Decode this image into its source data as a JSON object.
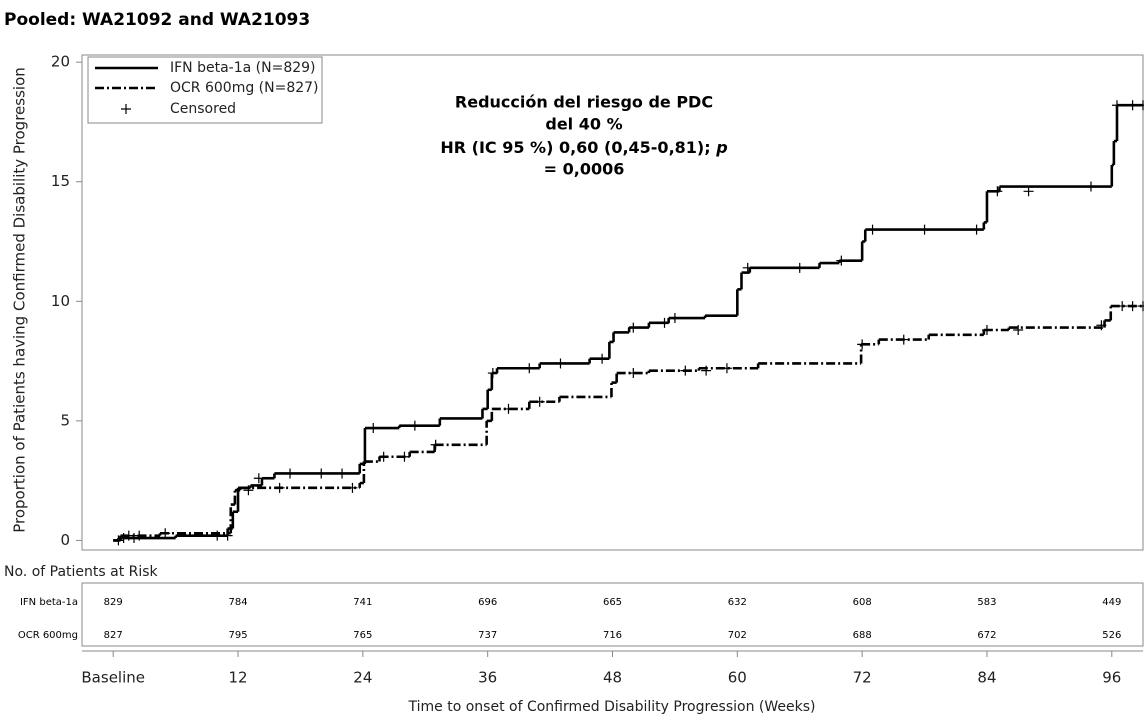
{
  "chart_data": {
    "type": "step",
    "title": "Pooled: WA21092 and WA21093",
    "xlabel": "Time to onset of Confirmed Disability Progression (Weeks)",
    "ylabel": "Proportion of Patients having Confirmed Disability Progression",
    "annotation": [
      "Reducción del riesgo de PDC",
      "del 40 %",
      [
        "HR (IC 95 %) 0,60 (0,45-0,81); ",
        "p"
      ],
      "= 0,0006"
    ],
    "legend_position": "upper left",
    "censored_label": "Censored",
    "xlim": [
      -3,
      99
    ],
    "ylim": [
      -0.4,
      20.3
    ],
    "xticks": [
      {
        "value": 0,
        "label": "Baseline"
      },
      12,
      24,
      36,
      48,
      60,
      72,
      84,
      96
    ],
    "yticks": [
      0,
      5,
      10,
      15,
      20
    ],
    "grid": false,
    "series": [
      {
        "name": "IFN beta-1a (N=829)",
        "color": "#000000",
        "dash": "solid",
        "x": [
          0,
          0.5,
          6,
          11,
          11.5,
          12,
          13.2,
          14.3,
          15.5,
          23.7,
          24.2,
          27.5,
          31.4,
          35.5,
          36,
          36.4,
          36.9,
          41,
          45.8,
          47.7,
          48.1,
          49.6,
          51.5,
          53.4,
          56.9,
          60,
          60.4,
          61.2,
          67.9,
          69.8,
          72,
          72.3,
          83.7,
          84,
          85.2,
          96,
          96.2,
          96.5
        ],
        "values": [
          0,
          0.1,
          0.2,
          0.5,
          1.2,
          2.2,
          2.3,
          2.6,
          2.8,
          3.2,
          4.7,
          4.8,
          5.1,
          5.5,
          6.3,
          7.0,
          7.2,
          7.4,
          7.6,
          8.3,
          8.7,
          8.9,
          9.1,
          9.3,
          9.4,
          10.5,
          11.2,
          11.4,
          11.6,
          11.7,
          12.5,
          13.0,
          13.3,
          14.6,
          14.8,
          15.7,
          16.7,
          18.2
        ],
        "censored_x": [
          1,
          2,
          10,
          11,
          14,
          17,
          20,
          22,
          25,
          29,
          36.5,
          40,
          43,
          47,
          50,
          53,
          54,
          61,
          66,
          70,
          73,
          78,
          83,
          85,
          88,
          94,
          96.5,
          98,
          99
        ],
        "censored_values": [
          0.1,
          0.1,
          0.2,
          0.2,
          2.6,
          2.8,
          2.8,
          2.8,
          4.7,
          4.8,
          7.0,
          7.2,
          7.4,
          7.6,
          8.9,
          9.1,
          9.3,
          11.4,
          11.4,
          11.7,
          13.0,
          13.0,
          13.0,
          14.6,
          14.6,
          14.8,
          18.2,
          18.2,
          18.2
        ]
      },
      {
        "name": "OCR 600mg (N=827)",
        "color": "#000000",
        "dash": "dashdot",
        "x": [
          0,
          0.7,
          4.5,
          11.3,
          11.7,
          12.2,
          23.7,
          24.1,
          25.6,
          28.5,
          30.9,
          35.9,
          36.4,
          40,
          42.9,
          47.9,
          48.4,
          51.5,
          56.3,
          62,
          71.9,
          73.6,
          78.4,
          83.7,
          86.1,
          95.3,
          95.9
        ],
        "values": [
          0,
          0.2,
          0.3,
          1.5,
          2.1,
          2.2,
          2.4,
          3.3,
          3.5,
          3.7,
          4.0,
          5.0,
          5.5,
          5.8,
          6.0,
          6.6,
          7.0,
          7.1,
          7.2,
          7.4,
          8.2,
          8.4,
          8.6,
          8.8,
          8.9,
          9.2,
          9.8
        ],
        "censored_x": [
          0.5,
          1.5,
          2.5,
          5,
          13,
          16,
          23,
          26,
          28,
          31,
          38,
          41,
          50,
          55,
          57,
          59,
          72,
          76,
          84,
          87,
          95,
          97,
          98,
          99
        ],
        "censored_values": [
          0,
          0.2,
          0.2,
          0.3,
          2.1,
          2.2,
          2.2,
          3.5,
          3.5,
          4.0,
          5.5,
          5.8,
          7.0,
          7.1,
          7.1,
          7.2,
          8.2,
          8.4,
          8.8,
          8.8,
          9.0,
          9.8,
          9.8,
          9.8
        ]
      }
    ],
    "risk_table": {
      "title": "No. of Patients at Risk",
      "rows": [
        {
          "label": "IFN beta-1a",
          "values": [
            829,
            784,
            741,
            696,
            665,
            632,
            608,
            583,
            449
          ]
        },
        {
          "label": "OCR 600mg",
          "values": [
            827,
            795,
            765,
            737,
            716,
            702,
            688,
            672,
            526
          ]
        }
      ]
    }
  }
}
